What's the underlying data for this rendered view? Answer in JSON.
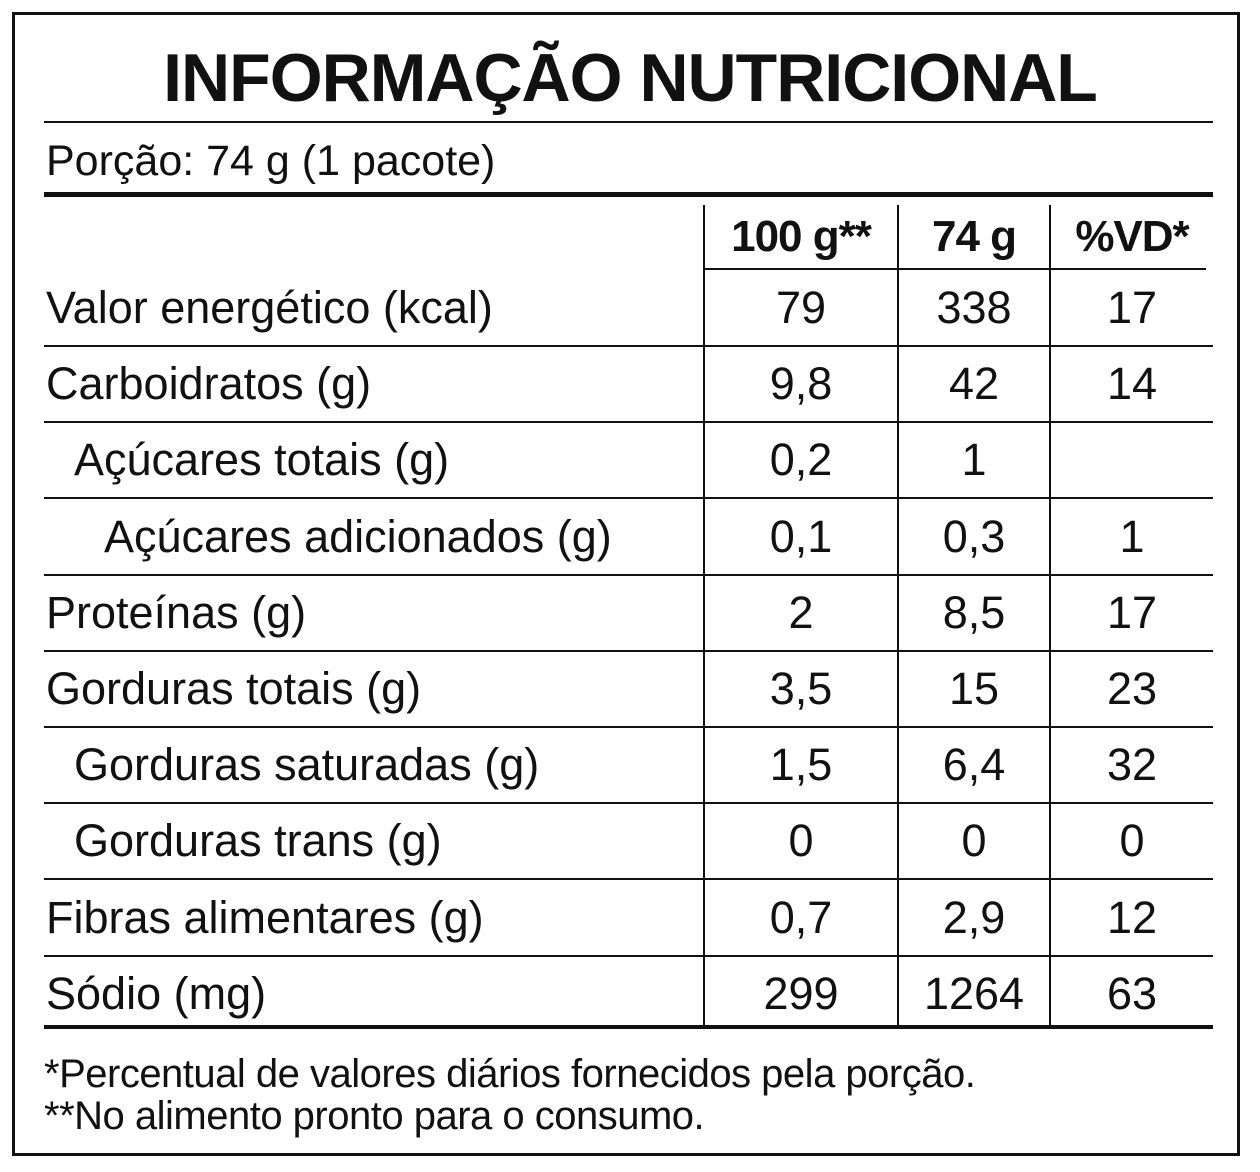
{
  "label": {
    "title": "INFORMAÇÃO NUTRICIONAL",
    "portion": "Porção: 74 g (1 pacote)",
    "columns": [
      "100 g**",
      "74 g",
      "%VD*"
    ],
    "rows": [
      {
        "name": "Valor energético (kcal)",
        "indent": 0,
        "per100": "79",
        "perPortion": "338",
        "vd": "17"
      },
      {
        "name": "Carboidratos (g)",
        "indent": 0,
        "per100": "9,8",
        "perPortion": "42",
        "vd": "14"
      },
      {
        "name": "Açúcares totais (g)",
        "indent": 1,
        "per100": "0,2",
        "perPortion": "1",
        "vd": ""
      },
      {
        "name": "Açúcares adicionados (g)",
        "indent": 2,
        "per100": "0,1",
        "perPortion": "0,3",
        "vd": "1"
      },
      {
        "name": "Proteínas (g)",
        "indent": 0,
        "per100": "2",
        "perPortion": "8,5",
        "vd": "17"
      },
      {
        "name": "Gorduras totais (g)",
        "indent": 0,
        "per100": "3,5",
        "perPortion": "15",
        "vd": "23"
      },
      {
        "name": "Gorduras saturadas (g)",
        "indent": 1,
        "per100": "1,5",
        "perPortion": "6,4",
        "vd": "32"
      },
      {
        "name": "Gorduras trans (g)",
        "indent": 1,
        "per100": "0",
        "perPortion": "0",
        "vd": "0"
      },
      {
        "name": "Fibras alimentares (g)",
        "indent": 0,
        "per100": "0,7",
        "perPortion": "2,9",
        "vd": "12"
      },
      {
        "name": "Sódio (mg)",
        "indent": 0,
        "per100": "299",
        "perPortion": "1264",
        "vd": "63"
      }
    ],
    "footnotes": [
      "*Percentual de valores diários fornecidos pela porção.",
      "**No alimento pronto para o consumo."
    ]
  }
}
